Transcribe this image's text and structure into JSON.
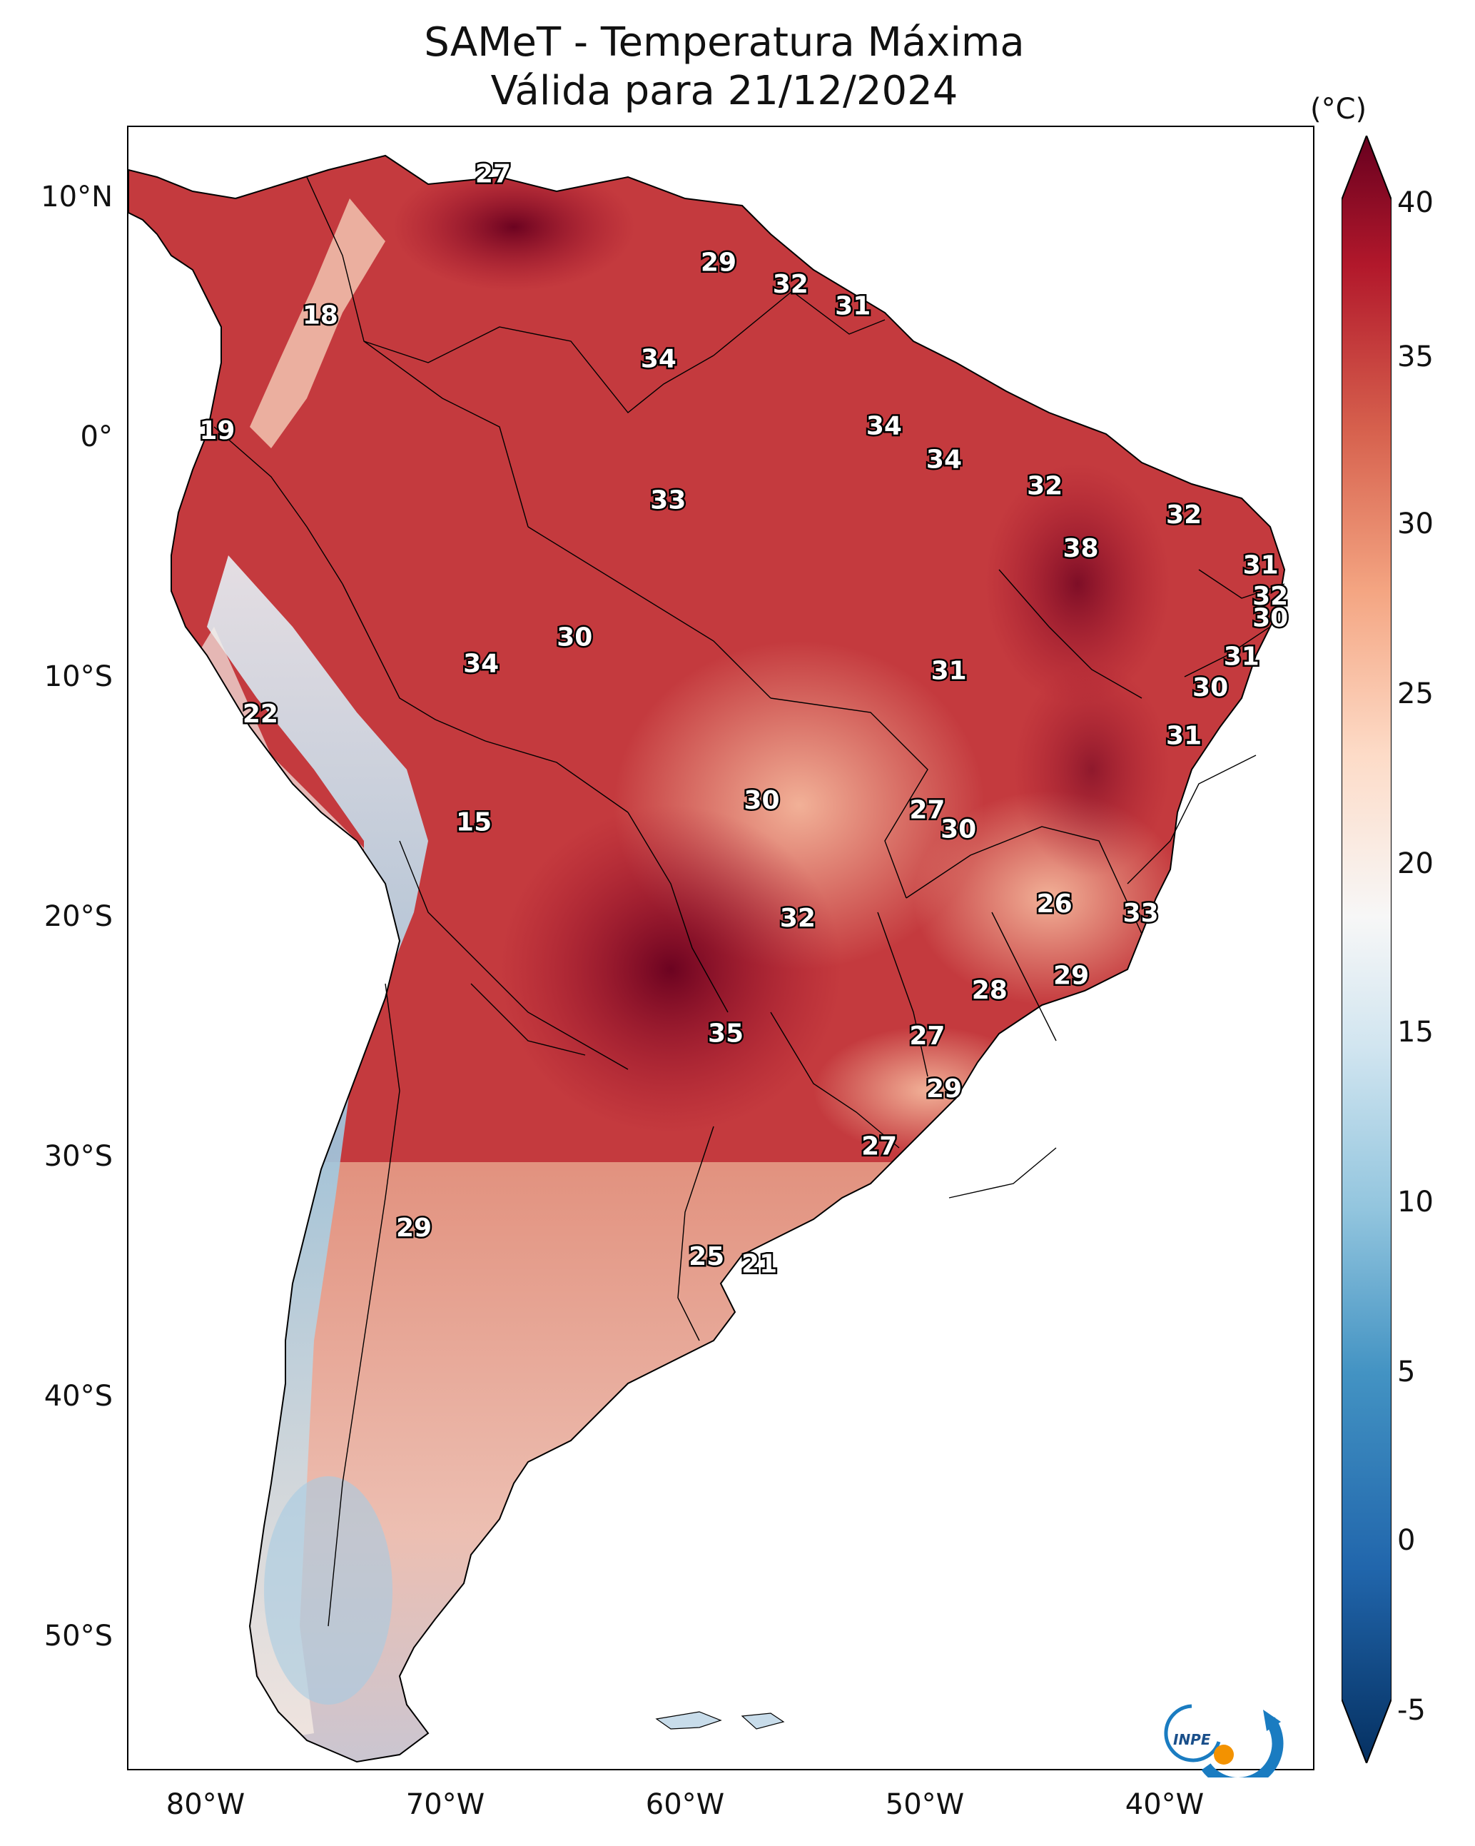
{
  "title": {
    "line1": "SAMeT - Temperatura Máxima",
    "line2": "Válida para 21/12/2024"
  },
  "axes": {
    "lat_ticks": [
      "10°N",
      "0°",
      "10°S",
      "20°S",
      "30°S",
      "40°S",
      "50°S"
    ],
    "lon_ticks": [
      "80°W",
      "70°W",
      "60°W",
      "50°W",
      "40°W"
    ]
  },
  "colorbar": {
    "unit": "(°C)",
    "ticks": [
      "40",
      "35",
      "30",
      "25",
      "20",
      "15",
      "10",
      "5",
      "0",
      "-5"
    ],
    "range": [
      -7,
      41
    ],
    "colors": [
      "#053061",
      "#2166ac",
      "#4393c3",
      "#92c5de",
      "#d1e5f0",
      "#f7f7f7",
      "#fddbc7",
      "#f4a582",
      "#d6604d",
      "#b2182b",
      "#67001f"
    ]
  },
  "city_values": [
    {
      "label": "27",
      "lon": -67.3,
      "lat": 10.5
    },
    {
      "label": "29",
      "lon": -57.9,
      "lat": 6.8
    },
    {
      "label": "32",
      "lon": -54.9,
      "lat": 5.9
    },
    {
      "label": "31",
      "lon": -52.3,
      "lat": 5.0
    },
    {
      "label": "18",
      "lon": -74.5,
      "lat": 4.6
    },
    {
      "label": "34",
      "lon": -60.4,
      "lat": 2.8
    },
    {
      "label": "34",
      "lon": -51.0,
      "lat": 0.0
    },
    {
      "label": "19",
      "lon": -78.8,
      "lat": -0.2
    },
    {
      "label": "34",
      "lon": -48.5,
      "lat": -1.4
    },
    {
      "label": "32",
      "lon": -44.3,
      "lat": -2.5
    },
    {
      "label": "33",
      "lon": -60.0,
      "lat": -3.1
    },
    {
      "label": "32",
      "lon": -38.5,
      "lat": -3.7
    },
    {
      "label": "38",
      "lon": -42.8,
      "lat": -5.1
    },
    {
      "label": "31",
      "lon": -35.3,
      "lat": -5.8
    },
    {
      "label": "32",
      "lon": -34.9,
      "lat": -7.1
    },
    {
      "label": "30",
      "lon": -34.9,
      "lat": -8.0
    },
    {
      "label": "30",
      "lon": -63.9,
      "lat": -8.8
    },
    {
      "label": "34",
      "lon": -67.8,
      "lat": -9.9
    },
    {
      "label": "31",
      "lon": -36.1,
      "lat": -9.6
    },
    {
      "label": "31",
      "lon": -48.3,
      "lat": -10.2
    },
    {
      "label": "30",
      "lon": -37.4,
      "lat": -10.9
    },
    {
      "label": "22",
      "lon": -77.0,
      "lat": -12.0
    },
    {
      "label": "31",
      "lon": -38.5,
      "lat": -12.9
    },
    {
      "label": "15",
      "lon": -68.1,
      "lat": -16.5
    },
    {
      "label": "30",
      "lon": -56.1,
      "lat": -15.6
    },
    {
      "label": "27",
      "lon": -49.2,
      "lat": -16.0
    },
    {
      "label": "30",
      "lon": -47.9,
      "lat": -16.8
    },
    {
      "label": "26",
      "lon": -43.9,
      "lat": -19.9
    },
    {
      "label": "33",
      "lon": -40.3,
      "lat": -20.3
    },
    {
      "label": "32",
      "lon": -54.6,
      "lat": -20.5
    },
    {
      "label": "29",
      "lon": -43.2,
      "lat": -22.9
    },
    {
      "label": "28",
      "lon": -46.6,
      "lat": -23.5
    },
    {
      "label": "35",
      "lon": -57.6,
      "lat": -25.3
    },
    {
      "label": "27",
      "lon": -49.2,
      "lat": -25.4
    },
    {
      "label": "29",
      "lon": -48.5,
      "lat": -27.6
    },
    {
      "label": "27",
      "lon": -51.2,
      "lat": -30.0
    },
    {
      "label": "29",
      "lon": -70.6,
      "lat": -33.4
    },
    {
      "label": "25",
      "lon": -58.4,
      "lat": -34.6
    },
    {
      "label": "21",
      "lon": -56.2,
      "lat": -34.9
    }
  ],
  "logo": {
    "text": "INPE"
  }
}
